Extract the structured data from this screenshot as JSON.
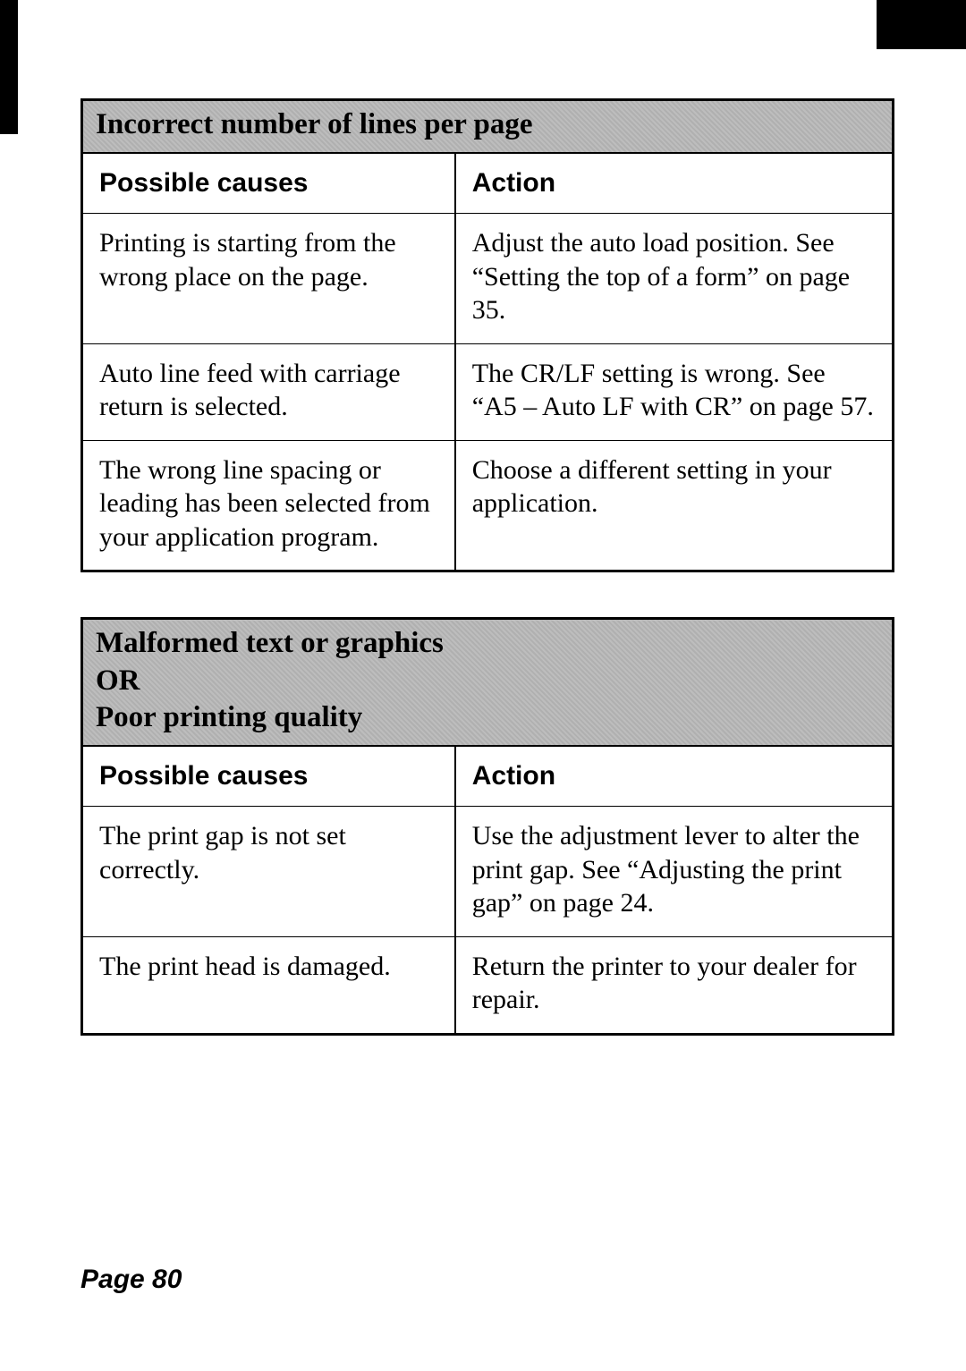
{
  "page_number_label": "Page 80",
  "tables": [
    {
      "title_html": "Incorrect number of lines per page",
      "columns": [
        "Possible causes",
        "Action"
      ],
      "rows": [
        {
          "cause": "Printing is starting from the wrong place on the page.",
          "action": "Adjust the auto load position. See “Setting the top of a form” on page 35."
        },
        {
          "cause": "Auto line feed with carriage return is selected.",
          "action": "The CR/LF setting is wrong. See “A5 – Auto LF with CR” on page 57."
        },
        {
          "cause": "The wrong line spacing or leading has been selected from your application program.",
          "action": "Choose a different setting in your application."
        }
      ]
    },
    {
      "title_html": "Malformed text or graphics<br>OR<br>Poor printing quality",
      "columns": [
        "Possible causes",
        "Action"
      ],
      "rows": [
        {
          "cause": "The print gap is not set correctly.",
          "action": "Use the adjustment lever to alter the print gap. See “Adjusting the print gap” on page 24."
        },
        {
          "cause": "The print head is damaged.",
          "action": "Return the printer to your dealer for repair."
        }
      ]
    }
  ]
}
